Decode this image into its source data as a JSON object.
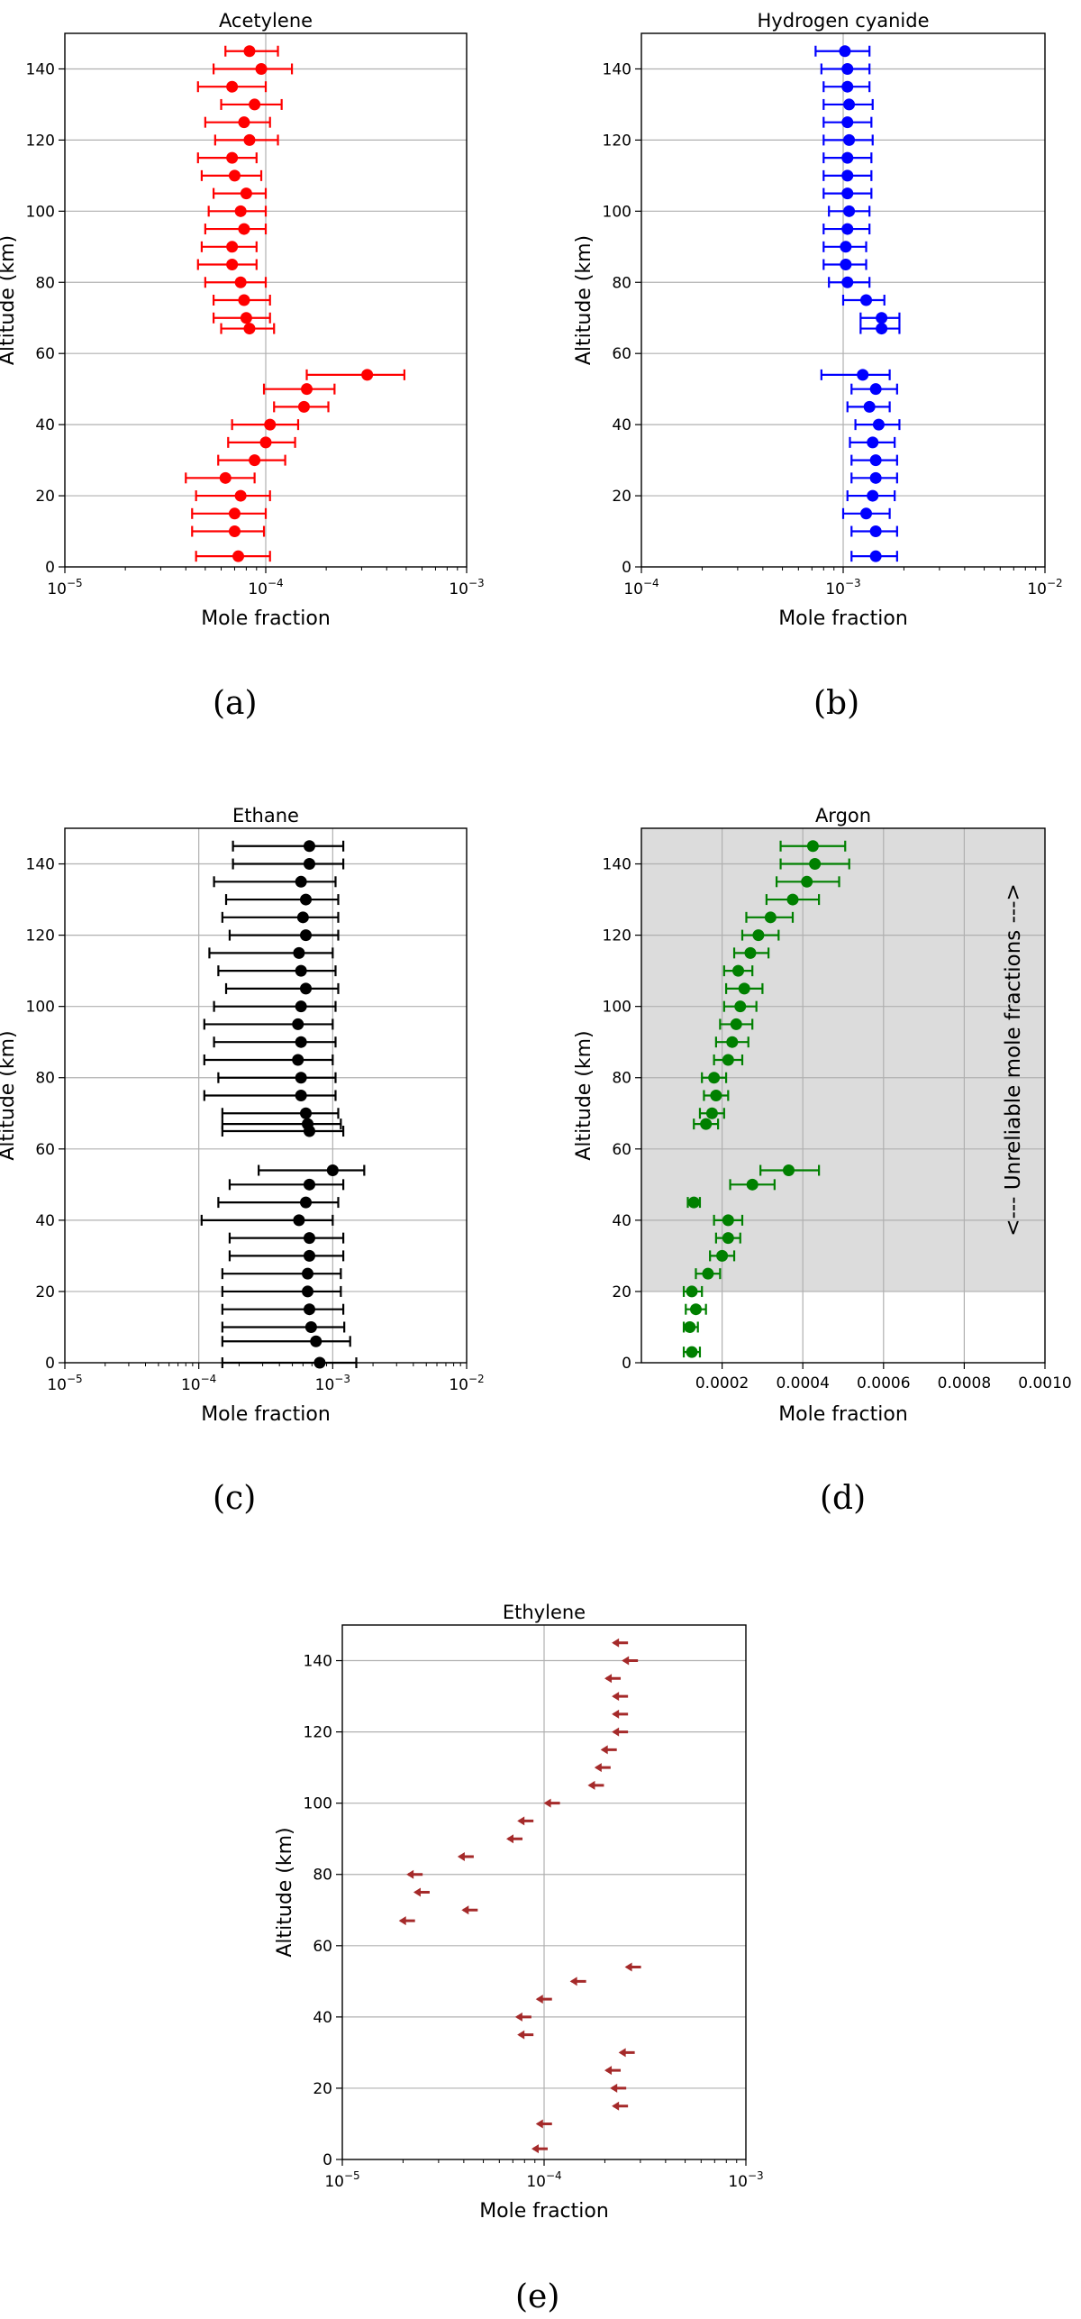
{
  "colors": {
    "acetylene": "#ff0000",
    "hcn": "#0000ff",
    "ethane": "#000000",
    "argon": "#008000",
    "ethylene": "#a52a2a",
    "grid": "#b0b0b0",
    "shade": "#dcdcdc"
  },
  "captions": [
    "(a)",
    "(b)",
    "(c)",
    "(d)",
    "(e)"
  ],
  "chart_data": [
    {
      "type": "scatter",
      "panel": "a",
      "title": "Acetylene",
      "xlabel": "Mole fraction",
      "ylabel": "Altitude (km)",
      "xscale": "log",
      "xlim": [
        1e-05,
        0.001
      ],
      "ylim": [
        0,
        150
      ],
      "xticks": [
        1e-05,
        0.0001,
        0.001
      ],
      "xtick_labels": [
        "10−5",
        "10−4",
        "10−3"
      ],
      "yticks": [
        0,
        20,
        40,
        60,
        80,
        100,
        120,
        140
      ],
      "grid": true,
      "marker": "errorbar",
      "points": [
        {
          "y": 145,
          "x": 8.3e-05,
          "xmin": 6.3e-05,
          "xmax": 0.000115
        },
        {
          "y": 140,
          "x": 9.5e-05,
          "xmin": 5.5e-05,
          "xmax": 0.000135
        },
        {
          "y": 135,
          "x": 6.8e-05,
          "xmin": 4.6e-05,
          "xmax": 0.0001
        },
        {
          "y": 130,
          "x": 8.8e-05,
          "xmin": 6e-05,
          "xmax": 0.00012
        },
        {
          "y": 125,
          "x": 7.8e-05,
          "xmin": 5e-05,
          "xmax": 0.000105
        },
        {
          "y": 120,
          "x": 8.3e-05,
          "xmin": 5.6e-05,
          "xmax": 0.000115
        },
        {
          "y": 115,
          "x": 6.8e-05,
          "xmin": 4.6e-05,
          "xmax": 9e-05
        },
        {
          "y": 110,
          "x": 7e-05,
          "xmin": 4.8e-05,
          "xmax": 9.5e-05
        },
        {
          "y": 105,
          "x": 8e-05,
          "xmin": 5.5e-05,
          "xmax": 0.0001
        },
        {
          "y": 100,
          "x": 7.5e-05,
          "xmin": 5.2e-05,
          "xmax": 0.0001
        },
        {
          "y": 95,
          "x": 7.8e-05,
          "xmin": 5e-05,
          "xmax": 0.0001
        },
        {
          "y": 90,
          "x": 6.8e-05,
          "xmin": 4.8e-05,
          "xmax": 9e-05
        },
        {
          "y": 85,
          "x": 6.8e-05,
          "xmin": 4.6e-05,
          "xmax": 9e-05
        },
        {
          "y": 80,
          "x": 7.5e-05,
          "xmin": 5e-05,
          "xmax": 0.0001
        },
        {
          "y": 75,
          "x": 7.8e-05,
          "xmin": 5.5e-05,
          "xmax": 0.000105
        },
        {
          "y": 70,
          "x": 8e-05,
          "xmin": 5.5e-05,
          "xmax": 0.000105
        },
        {
          "y": 67,
          "x": 8.3e-05,
          "xmin": 6e-05,
          "xmax": 0.00011
        },
        {
          "y": 54,
          "x": 0.00032,
          "xmin": 0.00016,
          "xmax": 0.00049
        },
        {
          "y": 50,
          "x": 0.00016,
          "xmin": 9.8e-05,
          "xmax": 0.00022
        },
        {
          "y": 45,
          "x": 0.000155,
          "xmin": 0.00011,
          "xmax": 0.000205
        },
        {
          "y": 40,
          "x": 0.000105,
          "xmin": 6.8e-05,
          "xmax": 0.000145
        },
        {
          "y": 35,
          "x": 0.0001,
          "xmin": 6.5e-05,
          "xmax": 0.00014
        },
        {
          "y": 30,
          "x": 8.8e-05,
          "xmin": 5.8e-05,
          "xmax": 0.000125
        },
        {
          "y": 25,
          "x": 6.3e-05,
          "xmin": 4e-05,
          "xmax": 8.8e-05
        },
        {
          "y": 20,
          "x": 7.5e-05,
          "xmin": 4.5e-05,
          "xmax": 0.000105
        },
        {
          "y": 15,
          "x": 7e-05,
          "xmin": 4.3e-05,
          "xmax": 0.0001
        },
        {
          "y": 10,
          "x": 7e-05,
          "xmin": 4.3e-05,
          "xmax": 9.8e-05
        },
        {
          "y": 3,
          "x": 7.3e-05,
          "xmin": 4.5e-05,
          "xmax": 0.000105
        }
      ]
    },
    {
      "type": "scatter",
      "panel": "b",
      "title": "Hydrogen cyanide",
      "xlabel": "Mole fraction",
      "ylabel": "Altitude (km)",
      "xscale": "log",
      "xlim": [
        0.0001,
        0.01
      ],
      "ylim": [
        0,
        150
      ],
      "xticks": [
        0.0001,
        0.001,
        0.01
      ],
      "xtick_labels": [
        "10−4",
        "10−3",
        "10−2"
      ],
      "yticks": [
        0,
        20,
        40,
        60,
        80,
        100,
        120,
        140
      ],
      "grid": true,
      "marker": "errorbar",
      "points": [
        {
          "y": 145,
          "x": 0.00102,
          "xmin": 0.00073,
          "xmax": 0.00135
        },
        {
          "y": 140,
          "x": 0.00105,
          "xmin": 0.00078,
          "xmax": 0.00135
        },
        {
          "y": 135,
          "x": 0.00105,
          "xmin": 0.0008,
          "xmax": 0.00135
        },
        {
          "y": 130,
          "x": 0.00107,
          "xmin": 0.0008,
          "xmax": 0.0014
        },
        {
          "y": 125,
          "x": 0.00105,
          "xmin": 0.0008,
          "xmax": 0.00138
        },
        {
          "y": 120,
          "x": 0.00107,
          "xmin": 0.0008,
          "xmax": 0.0014
        },
        {
          "y": 115,
          "x": 0.00105,
          "xmin": 0.0008,
          "xmax": 0.00138
        },
        {
          "y": 110,
          "x": 0.00105,
          "xmin": 0.0008,
          "xmax": 0.00138
        },
        {
          "y": 105,
          "x": 0.00105,
          "xmin": 0.0008,
          "xmax": 0.00138
        },
        {
          "y": 100,
          "x": 0.00107,
          "xmin": 0.00085,
          "xmax": 0.00135
        },
        {
          "y": 95,
          "x": 0.00105,
          "xmin": 0.0008,
          "xmax": 0.00135
        },
        {
          "y": 90,
          "x": 0.00103,
          "xmin": 0.0008,
          "xmax": 0.0013
        },
        {
          "y": 85,
          "x": 0.00103,
          "xmin": 0.0008,
          "xmax": 0.0013
        },
        {
          "y": 80,
          "x": 0.00105,
          "xmin": 0.00085,
          "xmax": 0.00135
        },
        {
          "y": 75,
          "x": 0.0013,
          "xmin": 0.001,
          "xmax": 0.0016
        },
        {
          "y": 70,
          "x": 0.00155,
          "xmin": 0.00122,
          "xmax": 0.0019
        },
        {
          "y": 67,
          "x": 0.00155,
          "xmin": 0.00122,
          "xmax": 0.0019
        },
        {
          "y": 54,
          "x": 0.00125,
          "xmin": 0.00078,
          "xmax": 0.0017
        },
        {
          "y": 50,
          "x": 0.00145,
          "xmin": 0.0011,
          "xmax": 0.00185
        },
        {
          "y": 45,
          "x": 0.00135,
          "xmin": 0.00105,
          "xmax": 0.0017
        },
        {
          "y": 40,
          "x": 0.0015,
          "xmin": 0.00115,
          "xmax": 0.0019
        },
        {
          "y": 35,
          "x": 0.0014,
          "xmin": 0.00108,
          "xmax": 0.0018
        },
        {
          "y": 30,
          "x": 0.00145,
          "xmin": 0.0011,
          "xmax": 0.00185
        },
        {
          "y": 25,
          "x": 0.00145,
          "xmin": 0.0011,
          "xmax": 0.00185
        },
        {
          "y": 20,
          "x": 0.0014,
          "xmin": 0.00105,
          "xmax": 0.0018
        },
        {
          "y": 15,
          "x": 0.0013,
          "xmin": 0.001,
          "xmax": 0.0017
        },
        {
          "y": 10,
          "x": 0.00145,
          "xmin": 0.0011,
          "xmax": 0.00185
        },
        {
          "y": 3,
          "x": 0.00145,
          "xmin": 0.0011,
          "xmax": 0.00185
        }
      ]
    },
    {
      "type": "scatter",
      "panel": "c",
      "title": "Ethane",
      "xlabel": "Mole fraction",
      "ylabel": "Altitude (km)",
      "xscale": "log",
      "xlim": [
        1e-05,
        0.01
      ],
      "ylim": [
        0,
        150
      ],
      "xticks": [
        1e-05,
        0.0001,
        0.001,
        0.01
      ],
      "xtick_labels": [
        "10−5",
        "10−4",
        "10−3",
        "10−2"
      ],
      "yticks": [
        0,
        20,
        40,
        60,
        80,
        100,
        120,
        140
      ],
      "grid": true,
      "marker": "errorbar",
      "points": [
        {
          "y": 145,
          "x": 0.00067,
          "xmin": 0.00018,
          "xmax": 0.0012
        },
        {
          "y": 140,
          "x": 0.00067,
          "xmin": 0.00018,
          "xmax": 0.0012
        },
        {
          "y": 135,
          "x": 0.00058,
          "xmin": 0.00013,
          "xmax": 0.00105
        },
        {
          "y": 130,
          "x": 0.00063,
          "xmin": 0.00016,
          "xmax": 0.0011
        },
        {
          "y": 125,
          "x": 0.0006,
          "xmin": 0.00015,
          "xmax": 0.0011
        },
        {
          "y": 120,
          "x": 0.00063,
          "xmin": 0.00017,
          "xmax": 0.0011
        },
        {
          "y": 115,
          "x": 0.00056,
          "xmin": 0.00012,
          "xmax": 0.001
        },
        {
          "y": 110,
          "x": 0.00058,
          "xmin": 0.00014,
          "xmax": 0.00105
        },
        {
          "y": 105,
          "x": 0.00063,
          "xmin": 0.00016,
          "xmax": 0.0011
        },
        {
          "y": 100,
          "x": 0.00058,
          "xmin": 0.00013,
          "xmax": 0.00105
        },
        {
          "y": 95,
          "x": 0.00055,
          "xmin": 0.00011,
          "xmax": 0.001
        },
        {
          "y": 90,
          "x": 0.00058,
          "xmin": 0.00013,
          "xmax": 0.00105
        },
        {
          "y": 85,
          "x": 0.00055,
          "xmin": 0.00011,
          "xmax": 0.001
        },
        {
          "y": 80,
          "x": 0.00058,
          "xmin": 0.00014,
          "xmax": 0.00105
        },
        {
          "y": 75,
          "x": 0.00058,
          "xmin": 0.00011,
          "xmax": 0.00105
        },
        {
          "y": 70,
          "x": 0.00063,
          "xmin": 0.00015,
          "xmax": 0.0011
        },
        {
          "y": 67,
          "x": 0.00065,
          "xmin": 0.00015,
          "xmax": 0.00115
        },
        {
          "y": 65,
          "x": 0.00067,
          "xmin": 0.00015,
          "xmax": 0.0012
        },
        {
          "y": 54,
          "x": 0.001,
          "xmin": 0.00028,
          "xmax": 0.00172
        },
        {
          "y": 50,
          "x": 0.00067,
          "xmin": 0.00017,
          "xmax": 0.0012
        },
        {
          "y": 45,
          "x": 0.00063,
          "xmin": 0.00014,
          "xmax": 0.0011
        },
        {
          "y": 40,
          "x": 0.00056,
          "xmin": 0.000105,
          "xmax": 0.001
        },
        {
          "y": 35,
          "x": 0.00067,
          "xmin": 0.00017,
          "xmax": 0.0012
        },
        {
          "y": 30,
          "x": 0.00067,
          "xmin": 0.00017,
          "xmax": 0.0012
        },
        {
          "y": 25,
          "x": 0.00065,
          "xmin": 0.00015,
          "xmax": 0.00115
        },
        {
          "y": 20,
          "x": 0.00065,
          "xmin": 0.00015,
          "xmax": 0.00115
        },
        {
          "y": 15,
          "x": 0.00067,
          "xmin": 0.00015,
          "xmax": 0.0012
        },
        {
          "y": 10,
          "x": 0.00069,
          "xmin": 0.00015,
          "xmax": 0.00122
        },
        {
          "y": 6,
          "x": 0.00075,
          "xmin": 0.00015,
          "xmax": 0.00135
        },
        {
          "y": 0,
          "x": 0.0008,
          "xmin": 0.00015,
          "xmax": 0.0015
        }
      ]
    },
    {
      "type": "scatter",
      "panel": "d",
      "title": "Argon",
      "xlabel": "Mole fraction",
      "ylabel": "Altitude (km)",
      "xscale": "linear",
      "xlim": [
        0,
        0.001
      ],
      "ylim": [
        0,
        150
      ],
      "xticks": [
        0.0002,
        0.0004,
        0.0006,
        0.0008,
        0.001
      ],
      "xtick_labels": [
        "0.0002",
        "0.0004",
        "0.0006",
        "0.0008",
        "0.0010"
      ],
      "yticks": [
        0,
        20,
        40,
        60,
        80,
        100,
        120,
        140
      ],
      "grid": true,
      "marker": "errorbar",
      "shaded_region": {
        "ymin": 20,
        "ymax": 150,
        "label": "<--- Unreliable mole fractions --->"
      },
      "points": [
        {
          "y": 145,
          "x": 0.000425,
          "xmin": 0.000345,
          "xmax": 0.000505
        },
        {
          "y": 140,
          "x": 0.00043,
          "xmin": 0.000345,
          "xmax": 0.000515
        },
        {
          "y": 135,
          "x": 0.00041,
          "xmin": 0.000335,
          "xmax": 0.00049
        },
        {
          "y": 130,
          "x": 0.000375,
          "xmin": 0.00031,
          "xmax": 0.00044
        },
        {
          "y": 125,
          "x": 0.00032,
          "xmin": 0.00026,
          "xmax": 0.000375
        },
        {
          "y": 120,
          "x": 0.00029,
          "xmin": 0.00025,
          "xmax": 0.00034
        },
        {
          "y": 115,
          "x": 0.00027,
          "xmin": 0.00023,
          "xmax": 0.000315
        },
        {
          "y": 110,
          "x": 0.00024,
          "xmin": 0.000205,
          "xmax": 0.000275
        },
        {
          "y": 105,
          "x": 0.000255,
          "xmin": 0.00021,
          "xmax": 0.0003
        },
        {
          "y": 100,
          "x": 0.000245,
          "xmin": 0.000205,
          "xmax": 0.000285
        },
        {
          "y": 95,
          "x": 0.000235,
          "xmin": 0.000195,
          "xmax": 0.000275
        },
        {
          "y": 90,
          "x": 0.000225,
          "xmin": 0.000185,
          "xmax": 0.000265
        },
        {
          "y": 85,
          "x": 0.000215,
          "xmin": 0.00018,
          "xmax": 0.00025
        },
        {
          "y": 80,
          "x": 0.00018,
          "xmin": 0.00015,
          "xmax": 0.00021
        },
        {
          "y": 75,
          "x": 0.000185,
          "xmin": 0.000155,
          "xmax": 0.000215
        },
        {
          "y": 70,
          "x": 0.000175,
          "xmin": 0.000145,
          "xmax": 0.000205
        },
        {
          "y": 67,
          "x": 0.00016,
          "xmin": 0.00013,
          "xmax": 0.00019
        },
        {
          "y": 54,
          "x": 0.000365,
          "xmin": 0.000295,
          "xmax": 0.00044
        },
        {
          "y": 50,
          "x": 0.000275,
          "xmin": 0.00022,
          "xmax": 0.00033
        },
        {
          "y": 45,
          "x": 0.00013,
          "xmin": 0.000115,
          "xmax": 0.000145
        },
        {
          "y": 40,
          "x": 0.000215,
          "xmin": 0.00018,
          "xmax": 0.00025
        },
        {
          "y": 35,
          "x": 0.000215,
          "xmin": 0.000185,
          "xmax": 0.000245
        },
        {
          "y": 30,
          "x": 0.0002,
          "xmin": 0.00017,
          "xmax": 0.00023
        },
        {
          "y": 25,
          "x": 0.000165,
          "xmin": 0.000135,
          "xmax": 0.000195
        },
        {
          "y": 20,
          "x": 0.000125,
          "xmin": 0.000105,
          "xmax": 0.00015
        },
        {
          "y": 15,
          "x": 0.000135,
          "xmin": 0.00011,
          "xmax": 0.00016
        },
        {
          "y": 10,
          "x": 0.00012,
          "xmin": 0.000105,
          "xmax": 0.00014
        },
        {
          "y": 3,
          "x": 0.000125,
          "xmin": 0.000105,
          "xmax": 0.000145
        }
      ]
    },
    {
      "type": "scatter",
      "panel": "e",
      "title": "Ethylene",
      "xlabel": "Mole fraction",
      "ylabel": "Altitude (km)",
      "xscale": "log",
      "xlim": [
        1e-05,
        0.001
      ],
      "ylim": [
        0,
        150
      ],
      "xticks": [
        1e-05,
        0.0001,
        0.001
      ],
      "xtick_labels": [
        "10−5",
        "10−4",
        "10−3"
      ],
      "yticks": [
        0,
        20,
        40,
        60,
        80,
        100,
        120,
        140
      ],
      "grid": true,
      "marker": "upper-limit-arrow",
      "points": [
        {
          "y": 145,
          "x": 0.00025
        },
        {
          "y": 140,
          "x": 0.00028
        },
        {
          "y": 135,
          "x": 0.00023
        },
        {
          "y": 130,
          "x": 0.00025
        },
        {
          "y": 125,
          "x": 0.00025
        },
        {
          "y": 120,
          "x": 0.00025
        },
        {
          "y": 115,
          "x": 0.00022
        },
        {
          "y": 110,
          "x": 0.000205
        },
        {
          "y": 105,
          "x": 0.00019
        },
        {
          "y": 100,
          "x": 0.000115
        },
        {
          "y": 95,
          "x": 8.5e-05
        },
        {
          "y": 90,
          "x": 7.5e-05
        },
        {
          "y": 85,
          "x": 4.3e-05
        },
        {
          "y": 80,
          "x": 2.4e-05
        },
        {
          "y": 75,
          "x": 2.6e-05
        },
        {
          "y": 70,
          "x": 4.5e-05
        },
        {
          "y": 67,
          "x": 2.2e-05
        },
        {
          "y": 54,
          "x": 0.00029
        },
        {
          "y": 50,
          "x": 0.000155
        },
        {
          "y": 45,
          "x": 0.000105
        },
        {
          "y": 40,
          "x": 8.3e-05
        },
        {
          "y": 35,
          "x": 8.5e-05
        },
        {
          "y": 30,
          "x": 0.00027
        },
        {
          "y": 25,
          "x": 0.00023
        },
        {
          "y": 20,
          "x": 0.000245
        },
        {
          "y": 15,
          "x": 0.00025
        },
        {
          "y": 10,
          "x": 0.000105
        },
        {
          "y": 3,
          "x": 0.0001
        }
      ]
    }
  ]
}
